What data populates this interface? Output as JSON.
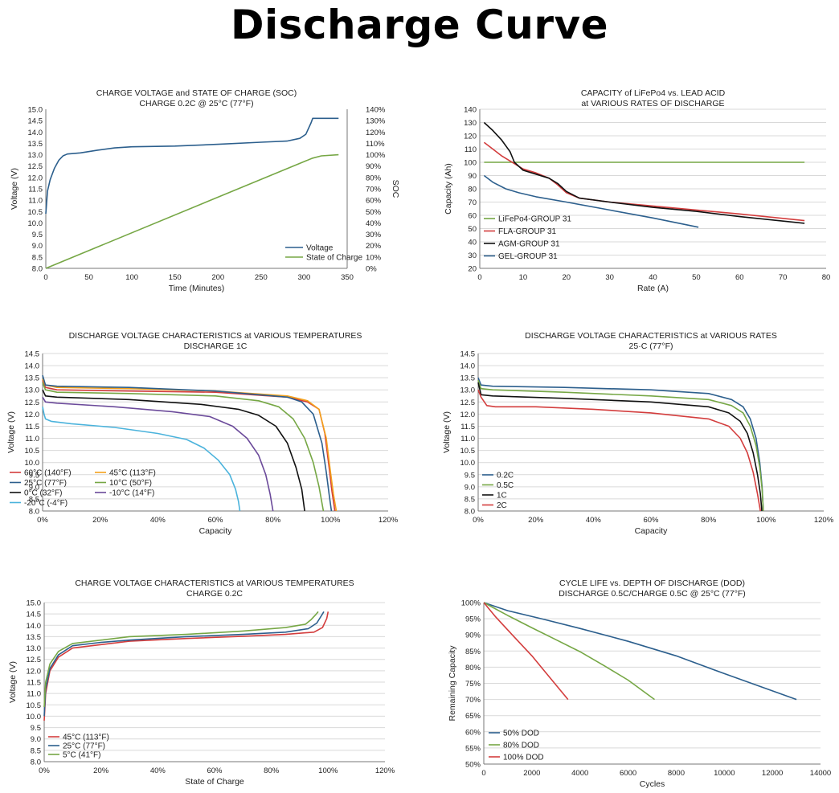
{
  "page": {
    "title": "Discharge Curve"
  },
  "colors": {
    "blue": "#2c5f8d",
    "green": "#76a745",
    "red": "#d33d3d",
    "black": "#111111",
    "orange": "#f3a11c",
    "purple": "#6b4a9a",
    "cyan": "#4bb3dc",
    "grid": "#d9d9d9"
  },
  "chart_data": [
    {
      "id": "c1",
      "type": "line",
      "title": "CHARGE VOLTAGE and STATE OF CHARGE (SOC)",
      "subtitle": "CHARGE 0.2C @ 25°C (77°F)",
      "xlabel": "Time (Minutes)",
      "ylabel": "Voltage (V)",
      "y2label": "SOC",
      "xlim": [
        0,
        350
      ],
      "ylim": [
        8.0,
        15.0
      ],
      "y2lim": [
        0,
        140
      ],
      "xticks": [
        "0",
        "50",
        "100",
        "150",
        "200",
        "250",
        "300",
        "350"
      ],
      "yticks": [
        "8.0",
        "8.5",
        "9.0",
        "9.5",
        "10.0",
        "10.5",
        "11.0",
        "11.5",
        "12.0",
        "12.5",
        "13.0",
        "13.5",
        "14.0",
        "14.5",
        "15.0"
      ],
      "y2ticks": [
        "0%",
        "10%",
        "20%",
        "30%",
        "40%",
        "50%",
        "60%",
        "70%",
        "80%",
        "90%",
        "100%",
        "110%",
        "120%",
        "130%",
        "140%"
      ],
      "grid": false,
      "legend": "bottom-right",
      "series": [
        {
          "name": "Voltage",
          "color": "#2c5f8d",
          "axis": "left",
          "x": [
            0,
            2,
            5,
            10,
            15,
            20,
            25,
            40,
            60,
            80,
            100,
            150,
            200,
            250,
            280,
            295,
            302,
            308,
            310,
            330,
            340
          ],
          "y": [
            10.4,
            11.4,
            11.9,
            12.4,
            12.75,
            12.95,
            13.03,
            13.08,
            13.2,
            13.3,
            13.35,
            13.38,
            13.46,
            13.55,
            13.6,
            13.72,
            13.9,
            14.4,
            14.6,
            14.6,
            14.6
          ]
        },
        {
          "name": "State of Charge",
          "color": "#76a745",
          "axis": "right",
          "x": [
            0,
            300,
            310,
            320,
            340
          ],
          "y": [
            0,
            94,
            97,
            99,
            100
          ]
        }
      ]
    },
    {
      "id": "c2",
      "type": "line",
      "title": "CAPACITY of LiFePo4 vs. LEAD ACID",
      "subtitle": "at VARIOUS RATES OF DISCHARGE",
      "xlabel": "Rate (A)",
      "ylabel": "Capacity (Ah)",
      "xlim": [
        0,
        80
      ],
      "ylim": [
        20,
        140
      ],
      "xticks": [
        "0",
        "10",
        "20",
        "30",
        "40",
        "50",
        "60",
        "70",
        "80"
      ],
      "yticks": [
        "20",
        "30",
        "40",
        "50",
        "60",
        "70",
        "80",
        "90",
        "100",
        "110",
        "120",
        "130",
        "140"
      ],
      "grid": true,
      "legend": "bottom-left",
      "series": [
        {
          "name": "LiFePo4-GROUP 31",
          "color": "#76a745",
          "x": [
            1,
            75
          ],
          "y": [
            100,
            100
          ]
        },
        {
          "name": "FLA-GROUP 31",
          "color": "#d33d3d",
          "x": [
            1,
            3,
            5,
            8,
            10,
            13,
            16,
            18,
            20,
            23,
            30,
            40,
            50,
            60,
            75
          ],
          "y": [
            115,
            110,
            105,
            99,
            95,
            92,
            88,
            83,
            77,
            73,
            70,
            67,
            64,
            61,
            56
          ]
        },
        {
          "name": "AGM-GROUP 31",
          "color": "#111111",
          "x": [
            1,
            3,
            5,
            7,
            8,
            10,
            13,
            16,
            18,
            20,
            23,
            30,
            40,
            50,
            60,
            75
          ],
          "y": [
            130,
            124,
            117,
            108,
            100,
            94,
            91,
            88,
            84,
            78,
            73,
            70,
            66,
            63,
            59,
            54
          ]
        },
        {
          "name": "GEL-GROUP 31",
          "color": "#2c5f8d",
          "x": [
            1,
            3,
            6,
            9,
            13,
            20,
            30,
            40,
            50.5
          ],
          "y": [
            90,
            85,
            80,
            77,
            74,
            70,
            64,
            58,
            51
          ]
        }
      ]
    },
    {
      "id": "c3",
      "type": "line",
      "title": "DISCHARGE VOLTAGE CHARACTERISTICS at VARIOUS TEMPERATURES",
      "subtitle": "DISCHARGE 1C",
      "xlabel": "Capacity",
      "ylabel": "Voltage (V)",
      "xlim": [
        0,
        120
      ],
      "ylim": [
        8.0,
        14.5
      ],
      "xticks": [
        "0%",
        "20%",
        "40%",
        "60%",
        "80%",
        "100%",
        "120%"
      ],
      "yticks": [
        "8.0",
        "8.5",
        "9.0",
        "9.5",
        "10.0",
        "10.5",
        "11.0",
        "11.5",
        "12.0",
        "12.5",
        "13.0",
        "13.5",
        "14.0",
        "14.5"
      ],
      "grid": true,
      "legend": "bottom-left",
      "series": [
        {
          "name": "60°C (140°F)",
          "color": "#d33d3d",
          "x": [
            0,
            1,
            5,
            30,
            60,
            85,
            92,
            96,
            98,
            99.5,
            100.5,
            101.5
          ],
          "y": [
            13.4,
            13.1,
            13.0,
            12.95,
            12.9,
            12.7,
            12.5,
            12.2,
            11.2,
            9.8,
            8.8,
            8.0
          ]
        },
        {
          "name": "45°C (113°F)",
          "color": "#f3a11c",
          "x": [
            0,
            1,
            5,
            30,
            60,
            85,
            92,
            96,
            98.5,
            100,
            101,
            102
          ],
          "y": [
            13.45,
            13.2,
            13.1,
            13.05,
            12.95,
            12.75,
            12.55,
            12.2,
            11.0,
            9.6,
            8.7,
            8.0
          ]
        },
        {
          "name": "25°C (77°F)",
          "color": "#2c5f8d",
          "x": [
            0,
            1,
            5,
            30,
            60,
            85,
            90,
            94,
            97,
            98.5,
            99.5,
            100.3
          ],
          "y": [
            13.6,
            13.2,
            13.15,
            13.1,
            12.95,
            12.7,
            12.5,
            12.0,
            10.8,
            9.6,
            8.7,
            8.0
          ]
        },
        {
          "name": "10°C (50°F)",
          "color": "#76a745",
          "x": [
            0,
            1,
            5,
            30,
            60,
            75,
            82,
            87,
            91,
            94,
            96,
            97.5
          ],
          "y": [
            13.3,
            13.0,
            12.9,
            12.85,
            12.75,
            12.55,
            12.3,
            11.8,
            11.0,
            10.0,
            9.0,
            8.0
          ]
        },
        {
          "name": "0°C (32°F)",
          "color": "#111111",
          "x": [
            0,
            1,
            5,
            30,
            55,
            68,
            75,
            81,
            85,
            88,
            90,
            91
          ],
          "y": [
            13.0,
            12.75,
            12.7,
            12.6,
            12.4,
            12.2,
            11.95,
            11.5,
            10.8,
            9.8,
            8.9,
            8.0
          ]
        },
        {
          "name": "-10°C (14°F)",
          "color": "#6b4a9a",
          "x": [
            0,
            1,
            5,
            25,
            45,
            58,
            66,
            71,
            75,
            77.5,
            79,
            80
          ],
          "y": [
            12.7,
            12.5,
            12.45,
            12.3,
            12.1,
            11.9,
            11.5,
            11.0,
            10.3,
            9.5,
            8.7,
            8.0
          ]
        },
        {
          "name": "-20°C (-4°F)",
          "color": "#4bb3dc",
          "x": [
            0,
            0.5,
            1,
            3,
            10,
            25,
            40,
            50,
            56,
            61,
            65,
            67,
            68,
            68.5
          ],
          "y": [
            12.3,
            12.0,
            11.8,
            11.7,
            11.6,
            11.45,
            11.2,
            10.95,
            10.6,
            10.1,
            9.5,
            8.9,
            8.4,
            8.0
          ]
        }
      ]
    },
    {
      "id": "c4",
      "type": "line",
      "title": "DISCHARGE VOLTAGE CHARACTERISTICS at VARIOUS RATES",
      "subtitle": "25·C (77°F)",
      "xlabel": "Capacity",
      "ylabel": "Voltage (V)",
      "xlim": [
        0,
        120
      ],
      "ylim": [
        8.0,
        14.5
      ],
      "xticks": [
        "0%",
        "20%",
        "40%",
        "60%",
        "80%",
        "100%",
        "120%"
      ],
      "yticks": [
        "8.0",
        "8.5",
        "9.0",
        "9.5",
        "10.0",
        "10.5",
        "11.0",
        "11.5",
        "12.0",
        "12.5",
        "13.0",
        "13.5",
        "14.0",
        "14.5"
      ],
      "grid": true,
      "legend": "bottom-left",
      "series": [
        {
          "name": "0.2C",
          "color": "#2c5f8d",
          "x": [
            0,
            1,
            5,
            30,
            60,
            80,
            88,
            92,
            94.5,
            96.5,
            97.8,
            98.6,
            99
          ],
          "y": [
            13.5,
            13.2,
            13.15,
            13.1,
            13.0,
            12.85,
            12.6,
            12.3,
            11.8,
            11.0,
            10.0,
            9.0,
            8.0
          ]
        },
        {
          "name": "0.5C",
          "color": "#76a745",
          "x": [
            0,
            1,
            5,
            30,
            60,
            80,
            88,
            92,
            94.5,
            96.5,
            97.8,
            98.6,
            99
          ],
          "y": [
            13.4,
            13.05,
            13.0,
            12.9,
            12.75,
            12.6,
            12.35,
            12.05,
            11.5,
            10.7,
            9.8,
            8.9,
            8.0
          ]
        },
        {
          "name": "1C",
          "color": "#111111",
          "x": [
            0,
            1,
            5,
            30,
            60,
            80,
            87,
            91,
            93.5,
            95.5,
            97,
            98,
            98.5
          ],
          "y": [
            13.3,
            12.8,
            12.75,
            12.65,
            12.5,
            12.3,
            12.05,
            11.7,
            11.2,
            10.4,
            9.5,
            8.7,
            8.0
          ]
        },
        {
          "name": "2C",
          "color": "#d33d3d",
          "x": [
            0,
            1,
            3,
            6,
            20,
            40,
            60,
            80,
            87,
            91,
            93.5,
            95.5,
            97,
            98
          ],
          "y": [
            13.0,
            12.7,
            12.35,
            12.3,
            12.3,
            12.2,
            12.05,
            11.8,
            11.5,
            11.0,
            10.4,
            9.6,
            8.7,
            8.0
          ]
        }
      ]
    },
    {
      "id": "c5",
      "type": "line",
      "title": "CHARGE VOLTAGE CHARACTERISTICS at VARIOUS TEMPERATURES",
      "subtitle": "CHARGE 0.2C",
      "xlabel": "State of Charge",
      "ylabel": "Voltage (V)",
      "xlim": [
        0,
        120
      ],
      "ylim": [
        8.0,
        15.0
      ],
      "xticks": [
        "0%",
        "20%",
        "40%",
        "60%",
        "80%",
        "100%",
        "120%"
      ],
      "yticks": [
        "8.0",
        "8.5",
        "9.0",
        "9.5",
        "10.0",
        "10.5",
        "11.0",
        "11.5",
        "12.0",
        "12.5",
        "13.0",
        "13.5",
        "14.0",
        "14.5",
        "15.0"
      ],
      "grid": true,
      "legend": "bottom-left",
      "series": [
        {
          "name": "45°C (113°F)",
          "color": "#d33d3d",
          "x": [
            0,
            0.5,
            2,
            5,
            10,
            20,
            30,
            50,
            70,
            85,
            95,
            98,
            99.5,
            100
          ],
          "y": [
            9.8,
            11.0,
            12.0,
            12.6,
            13.0,
            13.15,
            13.3,
            13.42,
            13.52,
            13.6,
            13.7,
            13.9,
            14.3,
            14.6
          ]
        },
        {
          "name": "25°C (77°F)",
          "color": "#2c5f8d",
          "x": [
            0,
            0.5,
            2,
            5,
            10,
            20,
            30,
            50,
            70,
            85,
            93,
            96,
            97.5,
            98.5
          ],
          "y": [
            10.0,
            11.2,
            12.1,
            12.7,
            13.1,
            13.25,
            13.35,
            13.5,
            13.6,
            13.7,
            13.85,
            14.1,
            14.4,
            14.6
          ]
        },
        {
          "name": "5°C (41°F)",
          "color": "#76a745",
          "x": [
            0,
            0.5,
            2,
            5,
            10,
            20,
            30,
            50,
            70,
            85,
            92,
            94,
            95.5,
            96.5
          ],
          "y": [
            10.4,
            11.5,
            12.3,
            12.85,
            13.2,
            13.35,
            13.5,
            13.6,
            13.75,
            13.9,
            14.05,
            14.25,
            14.45,
            14.6
          ]
        }
      ]
    },
    {
      "id": "c6",
      "type": "line",
      "title": "CYCLE LIFE vs. DEPTH OF DISCHARGE (DOD)",
      "subtitle": "DISCHARGE 0.5C/CHARGE 0.5C @ 25°C (77°F)",
      "xlabel": "Cycles",
      "ylabel": "Remaining Capacity",
      "xlim": [
        0,
        14000
      ],
      "ylim": [
        50,
        100
      ],
      "xticks": [
        "0",
        "2000",
        "4000",
        "6000",
        "8000",
        "10000",
        "12000",
        "14000"
      ],
      "yticks": [
        "50%",
        "55%",
        "60%",
        "65%",
        "70%",
        "75%",
        "80%",
        "85%",
        "90%",
        "95%",
        "100%"
      ],
      "grid": true,
      "legend": "bottom-left",
      "series": [
        {
          "name": "50% DOD",
          "color": "#2c5f8d",
          "x": [
            0,
            1000,
            2500,
            4000,
            6000,
            8000,
            10000,
            13000
          ],
          "y": [
            100,
            97.5,
            94.8,
            92,
            88,
            83.5,
            78,
            70
          ]
        },
        {
          "name": "80% DOD",
          "color": "#76a745",
          "x": [
            0,
            1000,
            2000,
            3000,
            4000,
            5000,
            6000,
            7100
          ],
          "y": [
            100,
            96,
            92.2,
            88.5,
            84.8,
            80.5,
            76,
            70
          ]
        },
        {
          "name": "100% DOD",
          "color": "#d33d3d",
          "x": [
            0,
            500,
            1000,
            1500,
            2000,
            2500,
            3000,
            3500
          ],
          "y": [
            100,
            95.5,
            91.5,
            87.5,
            83.5,
            79,
            74.5,
            70
          ]
        }
      ]
    }
  ]
}
